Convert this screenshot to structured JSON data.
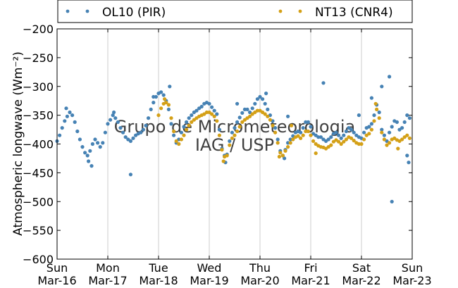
{
  "chart_data": {
    "type": "scatter",
    "title": "",
    "ylabel": "Atmospheric longwave (Wm⁻²)",
    "xlabel": "",
    "ylim": [
      -600,
      -200
    ],
    "yticks": [
      -200,
      -250,
      -300,
      -350,
      -400,
      -450,
      -500,
      -550,
      -600
    ],
    "xlim": [
      0,
      7
    ],
    "xtick_days": [
      "Sun",
      "Mon",
      "Tue",
      "Wed",
      "Thu",
      "Fri",
      "Sat",
      "Sun"
    ],
    "xtick_dates": [
      "Mar-16",
      "Mar-17",
      "Mar-18",
      "Mar-19",
      "Mar-20",
      "Mar-21",
      "Mar-22",
      "Mar-23"
    ],
    "grid": "vertical",
    "legend_position": "top",
    "watermark": [
      "Grupo de Micrometeorologia",
      "IAG / USP"
    ],
    "series": [
      {
        "name": "OL10 (PIR)",
        "color": "#4682b4",
        "points": [
          [
            0.0,
            -395
          ],
          [
            0.05,
            -385
          ],
          [
            0.1,
            -372
          ],
          [
            0.15,
            -360
          ],
          [
            0.2,
            -352
          ],
          [
            0.25,
            -345
          ],
          [
            0.3,
            -350
          ],
          [
            0.35,
            -362
          ],
          [
            0.4,
            -378
          ],
          [
            0.45,
            -392
          ],
          [
            0.5,
            -405
          ],
          [
            0.55,
            -415
          ],
          [
            0.6,
            -420
          ],
          [
            0.65,
            -412
          ],
          [
            0.7,
            -400
          ],
          [
            0.75,
            -392
          ],
          [
            0.8,
            -398
          ],
          [
            0.85,
            -405
          ],
          [
            0.9,
            -398
          ],
          [
            0.95,
            -380
          ],
          [
            1.0,
            -365
          ],
          [
            1.05,
            -358
          ],
          [
            1.1,
            -350
          ],
          [
            1.15,
            -355
          ],
          [
            1.2,
            -362
          ],
          [
            1.25,
            -372
          ],
          [
            1.3,
            -380
          ],
          [
            1.35,
            -388
          ],
          [
            1.4,
            -392
          ],
          [
            1.45,
            -395
          ],
          [
            1.5,
            -390
          ],
          [
            1.55,
            -385
          ],
          [
            1.6,
            -382
          ],
          [
            1.65,
            -380
          ],
          [
            1.7,
            -375
          ],
          [
            1.75,
            -368
          ],
          [
            1.8,
            -355
          ],
          [
            1.85,
            -340
          ],
          [
            1.9,
            -328
          ],
          [
            1.95,
            -318
          ],
          [
            2.0,
            -312
          ],
          [
            2.05,
            -310
          ],
          [
            2.1,
            -315
          ],
          [
            2.15,
            -325
          ],
          [
            2.2,
            -340
          ],
          [
            2.25,
            -365
          ],
          [
            2.3,
            -385
          ],
          [
            2.35,
            -398
          ],
          [
            2.4,
            -392
          ],
          [
            2.45,
            -380
          ],
          [
            2.5,
            -370
          ],
          [
            2.55,
            -362
          ],
          [
            2.6,
            -355
          ],
          [
            2.65,
            -350
          ],
          [
            2.7,
            -345
          ],
          [
            2.75,
            -342
          ],
          [
            2.8,
            -338
          ],
          [
            2.85,
            -335
          ],
          [
            2.9,
            -330
          ],
          [
            2.95,
            -328
          ],
          [
            3.0,
            -330
          ],
          [
            3.05,
            -336
          ],
          [
            3.1,
            -342
          ],
          [
            3.15,
            -348
          ],
          [
            3.2,
            -375
          ],
          [
            3.25,
            -408
          ],
          [
            3.3,
            -420
          ],
          [
            3.35,
            -418
          ],
          [
            3.4,
            -395
          ],
          [
            3.45,
            -380
          ],
          [
            3.5,
            -372
          ],
          [
            3.55,
            -362
          ],
          [
            3.6,
            -354
          ],
          [
            3.65,
            -346
          ],
          [
            3.7,
            -340
          ],
          [
            3.75,
            -340
          ],
          [
            3.8,
            -345
          ],
          [
            3.85,
            -338
          ],
          [
            3.9,
            -330
          ],
          [
            3.95,
            -322
          ],
          [
            4.0,
            -318
          ],
          [
            4.05,
            -322
          ],
          [
            4.1,
            -330
          ],
          [
            4.15,
            -340
          ],
          [
            4.2,
            -350
          ],
          [
            4.25,
            -360
          ],
          [
            4.3,
            -372
          ],
          [
            4.35,
            -392
          ],
          [
            4.4,
            -412
          ],
          [
            4.45,
            -420
          ],
          [
            4.5,
            -410
          ],
          [
            4.55,
            -398
          ],
          [
            4.6,
            -392
          ],
          [
            4.65,
            -386
          ],
          [
            4.7,
            -380
          ],
          [
            4.75,
            -378
          ],
          [
            4.8,
            -380
          ],
          [
            4.85,
            -372
          ],
          [
            4.9,
            -362
          ],
          [
            4.95,
            -362
          ],
          [
            5.0,
            -370
          ],
          [
            5.05,
            -382
          ],
          [
            5.1,
            -385
          ],
          [
            5.15,
            -388
          ],
          [
            5.2,
            -388
          ],
          [
            5.25,
            -392
          ],
          [
            5.3,
            -395
          ],
          [
            5.35,
            -392
          ],
          [
            5.4,
            -388
          ],
          [
            5.45,
            -382
          ],
          [
            5.5,
            -380
          ],
          [
            5.55,
            -385
          ],
          [
            5.6,
            -390
          ],
          [
            5.65,
            -385
          ],
          [
            5.7,
            -378
          ],
          [
            5.75,
            -372
          ],
          [
            5.8,
            -375
          ],
          [
            5.85,
            -380
          ],
          [
            5.9,
            -385
          ],
          [
            5.95,
            -388
          ],
          [
            6.0,
            -390
          ],
          [
            6.05,
            -380
          ],
          [
            6.1,
            -372
          ],
          [
            6.15,
            -370
          ],
          [
            6.2,
            -365
          ],
          [
            6.25,
            -350
          ],
          [
            6.3,
            -332
          ],
          [
            6.35,
            -345
          ],
          [
            6.4,
            -375
          ],
          [
            6.45,
            -385
          ],
          [
            6.5,
            -395
          ],
          [
            6.55,
            -380
          ],
          [
            6.6,
            -370
          ],
          [
            6.65,
            -360
          ],
          [
            6.7,
            -362
          ],
          [
            6.75,
            -375
          ],
          [
            6.8,
            -372
          ],
          [
            6.85,
            -362
          ],
          [
            6.9,
            -350
          ],
          [
            6.95,
            -355
          ],
          [
            0.18,
            -338
          ],
          [
            0.62,
            -430
          ],
          [
            0.68,
            -438
          ],
          [
            1.12,
            -345
          ],
          [
            1.45,
            -453
          ],
          [
            1.9,
            -318
          ],
          [
            2.22,
            -300
          ],
          [
            3.55,
            -330
          ],
          [
            4.12,
            -312
          ],
          [
            4.55,
            -352
          ],
          [
            5.25,
            -294
          ],
          [
            5.95,
            -350
          ],
          [
            6.2,
            -320
          ],
          [
            6.4,
            -300
          ],
          [
            6.55,
            -283
          ],
          [
            6.6,
            -500
          ],
          [
            6.9,
            -420
          ],
          [
            6.93,
            -432
          ],
          [
            3.32,
            -432
          ],
          [
            4.48,
            -425
          ]
        ]
      },
      {
        "name": "NT13 (CNR4)",
        "color": "#d4a017",
        "points": [
          [
            2.0,
            -350
          ],
          [
            2.05,
            -338
          ],
          [
            2.1,
            -330
          ],
          [
            2.15,
            -328
          ],
          [
            2.2,
            -332
          ],
          [
            2.25,
            -355
          ],
          [
            2.3,
            -378
          ],
          [
            2.35,
            -395
          ],
          [
            2.4,
            -400
          ],
          [
            2.45,
            -392
          ],
          [
            2.5,
            -385
          ],
          [
            2.55,
            -375
          ],
          [
            2.6,
            -368
          ],
          [
            2.65,
            -362
          ],
          [
            2.7,
            -358
          ],
          [
            2.75,
            -355
          ],
          [
            2.8,
            -352
          ],
          [
            2.85,
            -350
          ],
          [
            2.9,
            -348
          ],
          [
            2.95,
            -345
          ],
          [
            3.0,
            -345
          ],
          [
            3.05,
            -348
          ],
          [
            3.1,
            -352
          ],
          [
            3.15,
            -360
          ],
          [
            3.2,
            -385
          ],
          [
            3.25,
            -410
          ],
          [
            3.3,
            -422
          ],
          [
            3.35,
            -420
          ],
          [
            3.4,
            -402
          ],
          [
            3.45,
            -390
          ],
          [
            3.5,
            -385
          ],
          [
            3.55,
            -378
          ],
          [
            3.6,
            -370
          ],
          [
            3.65,
            -362
          ],
          [
            3.7,
            -358
          ],
          [
            3.75,
            -355
          ],
          [
            3.8,
            -352
          ],
          [
            3.85,
            -348
          ],
          [
            3.9,
            -345
          ],
          [
            3.95,
            -342
          ],
          [
            4.0,
            -342
          ],
          [
            4.05,
            -345
          ],
          [
            4.1,
            -348
          ],
          [
            4.15,
            -352
          ],
          [
            4.2,
            -358
          ],
          [
            4.25,
            -368
          ],
          [
            4.3,
            -380
          ],
          [
            4.35,
            -398
          ],
          [
            4.4,
            -415
          ],
          [
            4.45,
            -420
          ],
          [
            4.5,
            -412
          ],
          [
            4.55,
            -405
          ],
          [
            4.6,
            -398
          ],
          [
            4.65,
            -392
          ],
          [
            4.7,
            -388
          ],
          [
            4.75,
            -386
          ],
          [
            4.8,
            -390
          ],
          [
            4.85,
            -385
          ],
          [
            4.9,
            -378
          ],
          [
            4.95,
            -378
          ],
          [
            5.0,
            -385
          ],
          [
            5.05,
            -395
          ],
          [
            5.1,
            -400
          ],
          [
            5.15,
            -403
          ],
          [
            5.2,
            -405
          ],
          [
            5.25,
            -406
          ],
          [
            5.3,
            -408
          ],
          [
            5.35,
            -405
          ],
          [
            5.4,
            -402
          ],
          [
            5.45,
            -396
          ],
          [
            5.5,
            -393
          ],
          [
            5.55,
            -396
          ],
          [
            5.6,
            -400
          ],
          [
            5.65,
            -396
          ],
          [
            5.7,
            -392
          ],
          [
            5.75,
            -388
          ],
          [
            5.8,
            -390
          ],
          [
            5.85,
            -394
          ],
          [
            5.9,
            -398
          ],
          [
            5.95,
            -400
          ],
          [
            6.0,
            -400
          ],
          [
            6.05,
            -392
          ],
          [
            6.1,
            -385
          ],
          [
            6.15,
            -382
          ],
          [
            6.2,
            -375
          ],
          [
            6.25,
            -360
          ],
          [
            6.3,
            -340
          ],
          [
            6.35,
            -355
          ],
          [
            6.4,
            -380
          ],
          [
            6.45,
            -392
          ],
          [
            6.5,
            -402
          ],
          [
            6.55,
            -398
          ],
          [
            6.6,
            -392
          ],
          [
            6.65,
            -390
          ],
          [
            6.7,
            -393
          ],
          [
            6.75,
            -395
          ],
          [
            6.8,
            -392
          ],
          [
            6.85,
            -388
          ],
          [
            6.9,
            -385
          ],
          [
            6.95,
            -390
          ],
          [
            2.12,
            -322
          ],
          [
            3.28,
            -430
          ],
          [
            4.38,
            -422
          ],
          [
            4.62,
            -368
          ],
          [
            5.1,
            -416
          ],
          [
            6.28,
            -330
          ],
          [
            6.72,
            -408
          ]
        ]
      }
    ]
  }
}
